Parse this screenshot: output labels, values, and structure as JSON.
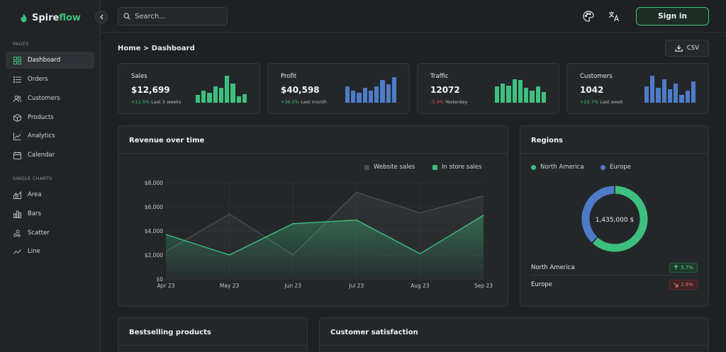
{
  "app": {
    "name_part1": "Spire",
    "name_part2": "flow",
    "accent": "#3fbf7f"
  },
  "sidebar": {
    "pages_label": "PAGES",
    "pages": [
      {
        "label": "Dashboard",
        "icon": "dashboard-icon",
        "active": true
      },
      {
        "label": "Orders",
        "icon": "orders-icon"
      },
      {
        "label": "Customers",
        "icon": "customers-icon"
      },
      {
        "label": "Products",
        "icon": "products-icon"
      },
      {
        "label": "Analytics",
        "icon": "analytics-icon"
      },
      {
        "label": "Calendar",
        "icon": "calendar-icon"
      }
    ],
    "charts_label": "SINGLE CHARTS",
    "charts": [
      {
        "label": "Area",
        "icon": "area-chart-icon"
      },
      {
        "label": "Bars",
        "icon": "bar-chart-icon"
      },
      {
        "label": "Scatter",
        "icon": "scatter-chart-icon"
      },
      {
        "label": "Line",
        "icon": "line-chart-icon"
      }
    ]
  },
  "topbar": {
    "search_placeholder": "Search...",
    "signin_label": "Sign in"
  },
  "breadcrumb": "Home > Dashboard",
  "csv_label": "CSV",
  "stats": [
    {
      "title": "Sales",
      "value": "$12,699",
      "change": "+12.5%",
      "direction": "up",
      "period": "Last 3 weeks",
      "color": "#3fbf7f",
      "bars": [
        0.3,
        0.45,
        0.38,
        0.6,
        0.55,
        1.0,
        0.7,
        0.25,
        0.32
      ]
    },
    {
      "title": "Profit",
      "value": "$40,598",
      "change": "+36.5%",
      "direction": "up",
      "period": "Last month",
      "color": "#4d7bc7",
      "bars": [
        0.6,
        0.45,
        0.38,
        0.55,
        0.45,
        0.6,
        0.85,
        0.68,
        0.95
      ]
    },
    {
      "title": "Traffic",
      "value": "12072",
      "change": "-5.4%",
      "direction": "down",
      "period": "Yesterday",
      "color": "#3fbf7f",
      "bars": [
        0.6,
        0.7,
        0.62,
        0.88,
        0.85,
        0.55,
        0.45,
        0.6,
        0.4
      ]
    },
    {
      "title": "Customers",
      "value": "1042",
      "change": "+22.7%",
      "direction": "up",
      "period": "Last week",
      "color": "#4d7bc7",
      "bars": [
        0.6,
        1.0,
        0.55,
        0.88,
        0.5,
        0.7,
        0.3,
        0.45,
        0.78
      ]
    }
  ],
  "revenue": {
    "title": "Revenue over time",
    "chart_data": {
      "type": "area",
      "categories": [
        "Apr 23",
        "May 23",
        "Jun 23",
        "Jul 23",
        "Aug 23",
        "Sep 23"
      ],
      "ylim": [
        0,
        8000
      ],
      "yticks": [
        "$0",
        "$2,000",
        "$4,000",
        "$6,000",
        "$8,000"
      ],
      "grid": true,
      "legend": "top-right",
      "series": [
        {
          "name": "Website sales",
          "color": "#4a4d51",
          "values": [
            2300,
            5400,
            2000,
            7200,
            5500,
            6900
          ]
        },
        {
          "name": "In store sales",
          "color": "#3fbf7f",
          "values": [
            3700,
            2000,
            4600,
            4900,
            2100,
            5300
          ]
        }
      ]
    }
  },
  "regions": {
    "title": "Regions",
    "total": "1,435,000 $",
    "legend": [
      {
        "name": "North America",
        "color": "#3fbf7f"
      },
      {
        "name": "Europe",
        "color": "#4d7bc7"
      }
    ],
    "chart_data": {
      "type": "pie",
      "categories": [
        "North America",
        "Europe"
      ],
      "values": [
        0.62,
        0.38
      ],
      "colors": [
        "#3fbf7f",
        "#4d7bc7"
      ]
    },
    "rows": [
      {
        "name": "North America",
        "change": "5.7%",
        "direction": "up"
      },
      {
        "name": "Europe",
        "change": "2.8%",
        "direction": "down"
      }
    ]
  },
  "bestselling": {
    "title": "Bestselling products"
  },
  "satisfaction": {
    "title": "Customer satisfaction"
  }
}
